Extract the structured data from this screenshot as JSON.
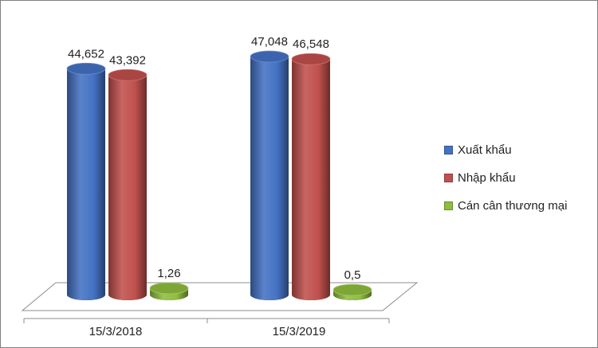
{
  "chart_data": {
    "type": "bar",
    "style": "3d-cylinder",
    "categories": [
      "15/3/2018",
      "15/3/2019"
    ],
    "series": [
      {
        "name": "Xuất khẩu",
        "values": [
          44.652,
          47.048
        ],
        "labels": [
          "44,652",
          "47,048"
        ],
        "color": "#4472c4"
      },
      {
        "name": "Nhập khẩu",
        "values": [
          43.392,
          46.548
        ],
        "labels": [
          "43,392",
          "46,548"
        ],
        "color": "#c0504d"
      },
      {
        "name": "Cán cân thương mại",
        "values": [
          1.26,
          0.5
        ],
        "labels": [
          "1,26",
          "0,5"
        ],
        "color": "#8fbd3f"
      }
    ],
    "ylim": [
      0,
      48
    ],
    "grid": false,
    "legend": "right"
  }
}
